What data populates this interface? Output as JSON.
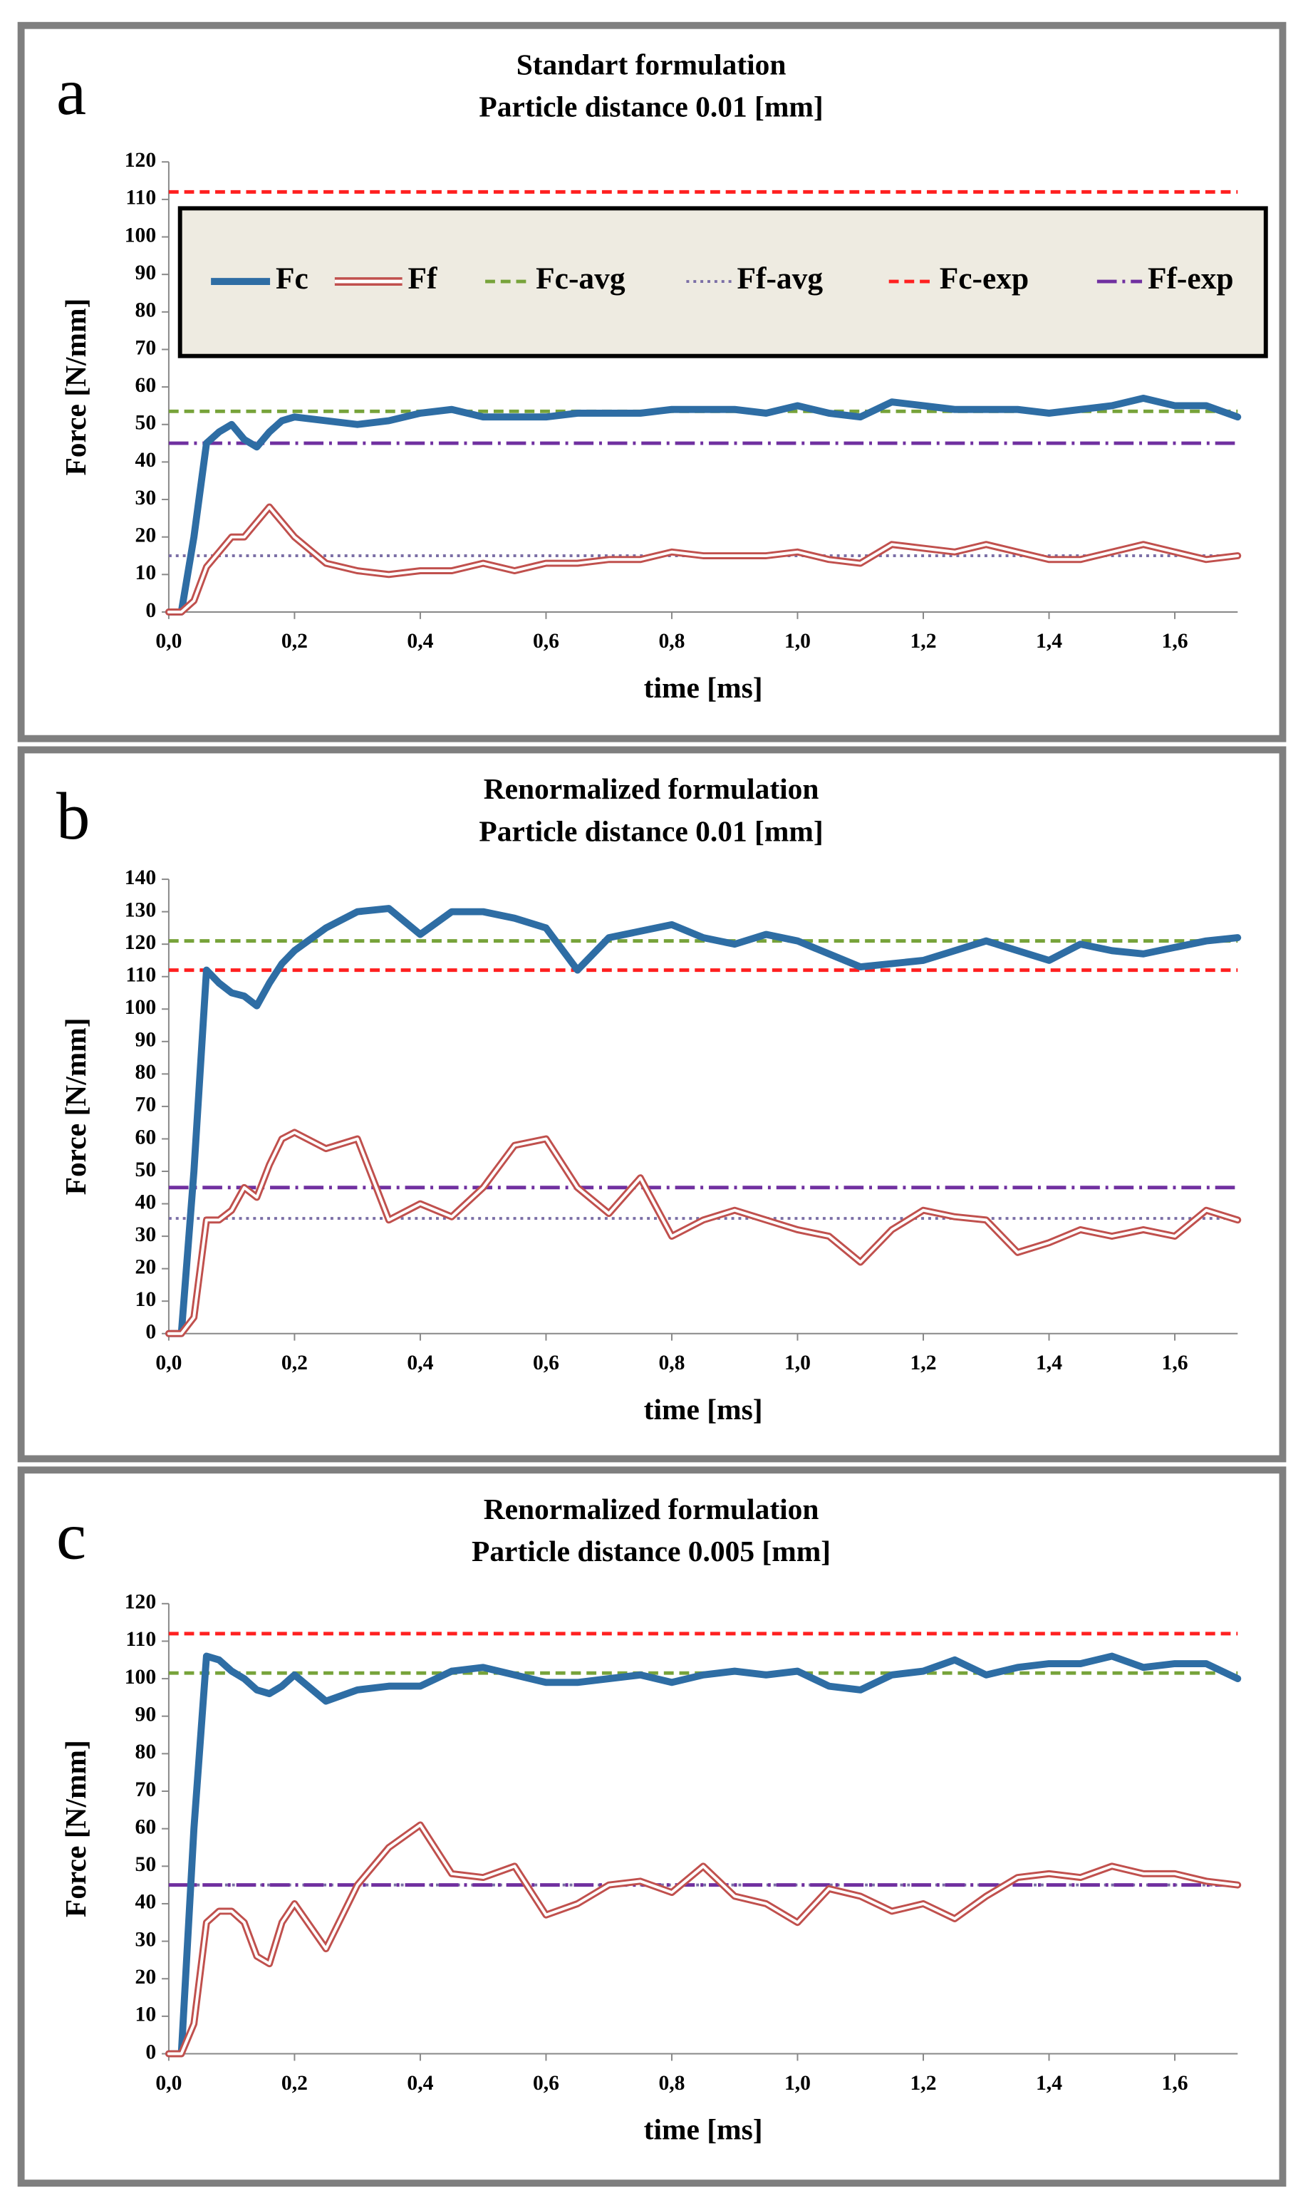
{
  "chart_data": [
    {
      "type": "line",
      "panel_label": "a",
      "title": "Standart formulation",
      "subtitle": "Particle distance 0.01 [mm]",
      "x_label": "time [ms]",
      "y_label": "Force [N/mm]",
      "legend": true,
      "xlim": [
        0,
        1.7
      ],
      "ylim": [
        0,
        120
      ],
      "xticks": [
        {
          "value": 0,
          "label": "0,0"
        },
        {
          "value": 0.2,
          "label": "0,2"
        },
        {
          "value": 0.4,
          "label": "0,4"
        },
        {
          "value": 0.6,
          "label": "0,6"
        },
        {
          "value": 0.8,
          "label": "0,8"
        },
        {
          "value": 1.0,
          "label": "1,0"
        },
        {
          "value": 1.2,
          "label": "1,2"
        },
        {
          "value": 1.4,
          "label": "1,4"
        },
        {
          "value": 1.6,
          "label": "1,6"
        }
      ],
      "yticks": [
        0,
        10,
        20,
        30,
        40,
        50,
        60,
        70,
        80,
        90,
        100,
        110,
        120
      ],
      "x": [
        0,
        0.02,
        0.04,
        0.06,
        0.08,
        0.1,
        0.12,
        0.14,
        0.16,
        0.18,
        0.2,
        0.25,
        0.3,
        0.35,
        0.4,
        0.45,
        0.5,
        0.55,
        0.6,
        0.65,
        0.7,
        0.75,
        0.8,
        0.85,
        0.9,
        0.95,
        1.0,
        1.05,
        1.1,
        1.15,
        1.2,
        1.25,
        1.3,
        1.35,
        1.4,
        1.45,
        1.5,
        1.55,
        1.6,
        1.65,
        1.7
      ],
      "series": [
        {
          "name": "Fc",
          "color": "#2e6da4",
          "values": [
            0,
            0,
            20,
            45,
            48,
            50,
            46,
            44,
            48,
            51,
            52,
            51,
            50,
            51,
            53,
            54,
            52,
            52,
            52,
            53,
            53,
            53,
            54,
            54,
            54,
            53,
            55,
            53,
            52,
            56,
            55,
            54,
            54,
            54,
            53,
            54,
            55,
            57,
            55,
            55,
            52
          ]
        },
        {
          "name": "Ff",
          "color": "#c0504d",
          "values": [
            0,
            0,
            3,
            12,
            16,
            20,
            20,
            24,
            28,
            24,
            20,
            13,
            11,
            10,
            11,
            11,
            13,
            11,
            13,
            13,
            14,
            14,
            16,
            15,
            15,
            15,
            16,
            14,
            13,
            18,
            17,
            16,
            18,
            16,
            14,
            14,
            16,
            18,
            16,
            14,
            15
          ]
        }
      ],
      "reference_lines": [
        {
          "name": "Fc-avg",
          "color": "#77a33a",
          "style": "dashed",
          "value": 53.5
        },
        {
          "name": "Ff-avg",
          "color": "#7b6fa6",
          "style": "dotted",
          "value": 15
        },
        {
          "name": "Fc-exp",
          "color": "#ff2020",
          "style": "dashed",
          "value": 112
        },
        {
          "name": "Ff-exp",
          "color": "#7030a0",
          "style": "dashdot",
          "value": 45
        }
      ]
    },
    {
      "type": "line",
      "panel_label": "b",
      "title": "Renormalized formulation",
      "subtitle": "Particle distance 0.01 [mm]",
      "x_label": "time [ms]",
      "y_label": "Force [N/mm]",
      "legend": false,
      "xlim": [
        0,
        1.7
      ],
      "ylim": [
        0,
        140
      ],
      "xticks": [
        {
          "value": 0,
          "label": "0,0"
        },
        {
          "value": 0.2,
          "label": "0,2"
        },
        {
          "value": 0.4,
          "label": "0,4"
        },
        {
          "value": 0.6,
          "label": "0,6"
        },
        {
          "value": 0.8,
          "label": "0,8"
        },
        {
          "value": 1.0,
          "label": "1,0"
        },
        {
          "value": 1.2,
          "label": "1,2"
        },
        {
          "value": 1.4,
          "label": "1,4"
        },
        {
          "value": 1.6,
          "label": "1,6"
        }
      ],
      "yticks": [
        0,
        10,
        20,
        30,
        40,
        50,
        60,
        70,
        80,
        90,
        100,
        110,
        120,
        130,
        140
      ],
      "x": [
        0,
        0.02,
        0.04,
        0.06,
        0.08,
        0.1,
        0.12,
        0.14,
        0.16,
        0.18,
        0.2,
        0.25,
        0.3,
        0.35,
        0.4,
        0.45,
        0.5,
        0.55,
        0.6,
        0.65,
        0.7,
        0.75,
        0.8,
        0.85,
        0.9,
        0.95,
        1.0,
        1.05,
        1.1,
        1.15,
        1.2,
        1.25,
        1.3,
        1.35,
        1.4,
        1.45,
        1.5,
        1.55,
        1.6,
        1.65,
        1.7
      ],
      "series": [
        {
          "name": "Fc",
          "color": "#2e6da4",
          "values": [
            0,
            0,
            50,
            112,
            108,
            105,
            104,
            101,
            108,
            114,
            118,
            125,
            130,
            131,
            123,
            130,
            130,
            128,
            125,
            112,
            122,
            124,
            126,
            122,
            120,
            123,
            121,
            117,
            113,
            114,
            115,
            118,
            121,
            118,
            115,
            120,
            118,
            117,
            119,
            121,
            122
          ]
        },
        {
          "name": "Ff",
          "color": "#c0504d",
          "values": [
            0,
            0,
            5,
            35,
            35,
            38,
            45,
            42,
            52,
            60,
            62,
            57,
            60,
            35,
            40,
            36,
            45,
            58,
            60,
            45,
            37,
            48,
            30,
            35,
            38,
            35,
            32,
            30,
            22,
            32,
            38,
            36,
            35,
            25,
            28,
            32,
            30,
            32,
            30,
            38,
            35
          ]
        }
      ],
      "reference_lines": [
        {
          "name": "Fc-avg",
          "color": "#77a33a",
          "style": "dashed",
          "value": 121
        },
        {
          "name": "Ff-avg",
          "color": "#7b6fa6",
          "style": "dotted",
          "value": 35.5
        },
        {
          "name": "Fc-exp",
          "color": "#ff2020",
          "style": "dashed",
          "value": 112
        },
        {
          "name": "Ff-exp",
          "color": "#7030a0",
          "style": "dashdot",
          "value": 45
        }
      ]
    },
    {
      "type": "line",
      "panel_label": "c",
      "title": "Renormalized formulation",
      "subtitle": "Particle distance 0.005 [mm]",
      "x_label": "time [ms]",
      "y_label": "Force [N/mm]",
      "legend": false,
      "xlim": [
        0,
        1.7
      ],
      "ylim": [
        0,
        120
      ],
      "xticks": [
        {
          "value": 0,
          "label": "0,0"
        },
        {
          "value": 0.2,
          "label": "0,2"
        },
        {
          "value": 0.4,
          "label": "0,4"
        },
        {
          "value": 0.6,
          "label": "0,6"
        },
        {
          "value": 0.8,
          "label": "0,8"
        },
        {
          "value": 1.0,
          "label": "1,0"
        },
        {
          "value": 1.2,
          "label": "1,2"
        },
        {
          "value": 1.4,
          "label": "1,4"
        },
        {
          "value": 1.6,
          "label": "1,6"
        }
      ],
      "yticks": [
        0,
        10,
        20,
        30,
        40,
        50,
        60,
        70,
        80,
        90,
        100,
        110,
        120
      ],
      "x": [
        0,
        0.02,
        0.04,
        0.06,
        0.08,
        0.1,
        0.12,
        0.14,
        0.16,
        0.18,
        0.2,
        0.25,
        0.3,
        0.35,
        0.4,
        0.45,
        0.5,
        0.55,
        0.6,
        0.65,
        0.7,
        0.75,
        0.8,
        0.85,
        0.9,
        0.95,
        1.0,
        1.05,
        1.1,
        1.15,
        1.2,
        1.25,
        1.3,
        1.35,
        1.4,
        1.45,
        1.5,
        1.55,
        1.6,
        1.65,
        1.7
      ],
      "series": [
        {
          "name": "Fc",
          "color": "#2e6da4",
          "values": [
            0,
            0,
            60,
            106,
            105,
            102,
            100,
            97,
            96,
            98,
            101,
            94,
            97,
            98,
            98,
            102,
            103,
            101,
            99,
            99,
            100,
            101,
            99,
            101,
            102,
            101,
            102,
            98,
            97,
            101,
            102,
            105,
            101,
            103,
            104,
            104,
            106,
            103,
            104,
            104,
            100
          ]
        },
        {
          "name": "Ff",
          "color": "#c0504d",
          "values": [
            0,
            0,
            8,
            35,
            38,
            38,
            35,
            26,
            24,
            35,
            40,
            28,
            45,
            55,
            61,
            48,
            47,
            50,
            37,
            40,
            45,
            46,
            43,
            50,
            42,
            40,
            35,
            44,
            42,
            38,
            40,
            36,
            42,
            47,
            48,
            47,
            50,
            48,
            48,
            46,
            45
          ]
        }
      ],
      "reference_lines": [
        {
          "name": "Fc-avg",
          "color": "#77a33a",
          "style": "dashed",
          "value": 101.5
        },
        {
          "name": "Ff-avg",
          "color": "#7b6fa6",
          "style": "dotted",
          "value": 45
        },
        {
          "name": "Fc-exp",
          "color": "#ff2020",
          "style": "dashed",
          "value": 112
        },
        {
          "name": "Ff-exp",
          "color": "#7030a0",
          "style": "dashdot",
          "value": 45
        }
      ]
    }
  ]
}
